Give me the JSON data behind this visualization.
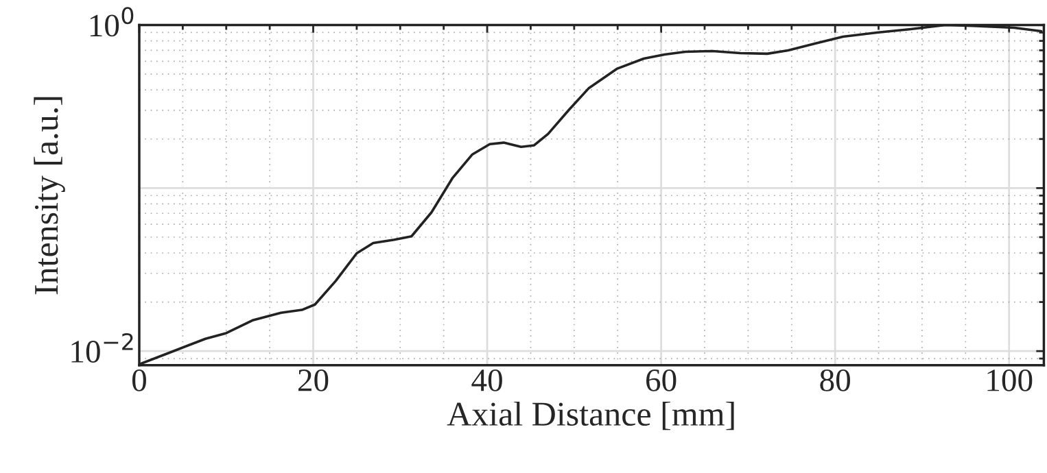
{
  "chart_data": {
    "type": "line",
    "xlabel": "Axial Distance [mm]",
    "ylabel": "Intensity [a.u.]",
    "x": [
      0,
      7.6,
      10,
      13.1,
      16.3,
      18.7,
      20.2,
      22.6,
      25,
      26.9,
      29.3,
      31.3,
      33.6,
      36,
      38.3,
      40.3,
      41.9,
      43.9,
      45.4,
      47,
      49.4,
      51.7,
      54.9,
      58,
      60.4,
      62.8,
      65.9,
      69.1,
      72.2,
      74.6,
      77.7,
      80.9,
      84.8,
      88.7,
      92.7,
      95.8,
      100.6,
      103.7
    ],
    "series": [
      {
        "color": "#222222",
        "values": [
          0.0083,
          0.0119,
          0.0129,
          0.0155,
          0.0172,
          0.0179,
          0.0193,
          0.027,
          0.0398,
          0.046,
          0.0482,
          0.0506,
          0.071,
          0.115,
          0.161,
          0.186,
          0.19,
          0.179,
          0.183,
          0.215,
          0.302,
          0.411,
          0.539,
          0.623,
          0.66,
          0.686,
          0.693,
          0.673,
          0.667,
          0.7,
          0.77,
          0.849,
          0.899,
          0.944,
          1.0,
          0.99,
          0.962,
          0.917
        ]
      }
    ],
    "log": "y",
    "xlim": [
      0,
      104
    ],
    "ylim": [
      0.0082,
      1
    ],
    "xticks": [
      0,
      20,
      40,
      60,
      80,
      100
    ],
    "yticks": [
      {
        "value": 0.01,
        "label": "10$^{−2}$"
      },
      {
        "value": 0.1,
        "label": null
      },
      {
        "value": 1,
        "label": "10$^{0}$"
      }
    ],
    "grid": true,
    "marker": "none",
    "line_style": "solid"
  }
}
